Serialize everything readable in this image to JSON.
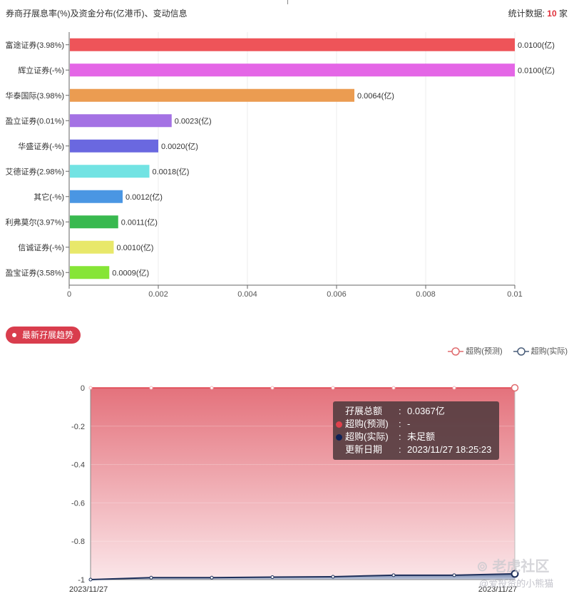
{
  "header": {
    "title": "券商孖展息率(%)及资金分布(亿港币)、变动信息",
    "stats_label": "统计数据:",
    "stats_count": "10",
    "stats_unit": "家"
  },
  "colors": {
    "accent": "#d93d4d",
    "predicted_line": "#e06b6e",
    "actual_line": "#1d2f5a",
    "area_top": "#e4727c",
    "area_bottom": "#fbe6e9"
  },
  "chart_data": [
    {
      "type": "bar",
      "orientation": "horizontal",
      "categories": [
        "富途证券(3.98%)",
        "辉立证券(-%)",
        "华泰国际(3.98%)",
        "盈立证券(0.01%)",
        "华盛证券(-%)",
        "艾德证券(2.98%)",
        "其它(-%)",
        "利弗莫尔(3.97%)",
        "信诚证券(-%)",
        "盈宝证券(3.58%)"
      ],
      "values": [
        0.01,
        0.01,
        0.0064,
        0.0023,
        0.002,
        0.0018,
        0.0012,
        0.0011,
        0.001,
        0.0009
      ],
      "value_labels": [
        "0.0100(亿)",
        "0.0100(亿)",
        "0.0064(亿)",
        "0.0023(亿)",
        "0.0020(亿)",
        "0.0018(亿)",
        "0.0012(亿)",
        "0.0011(亿)",
        "0.0010(亿)",
        "0.0009(亿)"
      ],
      "bar_colors": [
        "#ee5459",
        "#e466e6",
        "#eb9c51",
        "#a472e4",
        "#6a68e0",
        "#72e3e3",
        "#4a96e3",
        "#38b94f",
        "#e8e86a",
        "#86e536"
      ],
      "xlim": [
        0,
        0.01
      ],
      "xticks": [
        "0",
        "0.002",
        "0.004",
        "0.006",
        "0.008",
        "0.01"
      ],
      "grid": true
    },
    {
      "type": "area",
      "x": [
        "2023/11/27",
        "",
        "",
        "",
        "",
        "",
        "",
        "2023/11/27"
      ],
      "x_labels": [
        "2023/11/27",
        "2023/11/27"
      ],
      "series": [
        {
          "name": "超购(预测)",
          "values": [
            0,
            0,
            0,
            0,
            0,
            0,
            0,
            0
          ]
        },
        {
          "name": "超购(实际)",
          "values": [
            -1,
            -0.99,
            -0.99,
            -0.987,
            -0.985,
            -0.977,
            -0.977,
            -0.97
          ]
        }
      ],
      "ylim": [
        -1,
        0
      ],
      "yticks": [
        "0",
        "-0.2",
        "-0.4",
        "-0.6",
        "-0.8",
        "-1"
      ],
      "legend_position": "top-right"
    }
  ],
  "section": {
    "trend_label": "最新孖展趋势"
  },
  "legend": {
    "predicted": "超购(预测)",
    "actual": "超购(实际)"
  },
  "tooltip": {
    "row1_key": "孖展总额",
    "row1_val": "0.0367亿",
    "row2_key": "超购(预测)",
    "row2_val": "-",
    "row3_key": "超购(实际)",
    "row3_val": "未足额",
    "row4_key": "更新日期",
    "row4_val": "2023/11/27 18:25:23",
    "sep": ":"
  },
  "watermark": {
    "brand": "老虎社区",
    "user": "@爱投资的小熊猫"
  }
}
